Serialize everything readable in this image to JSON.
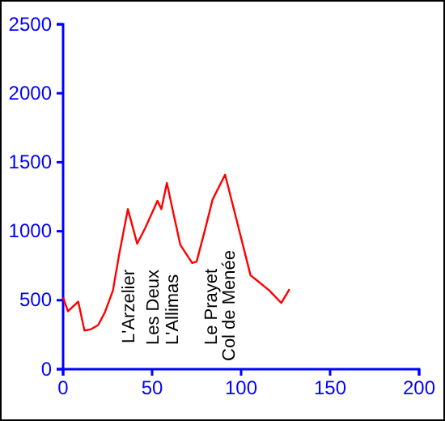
{
  "chart_data": {
    "type": "line",
    "x": [
      0,
      2.7,
      8.5,
      12,
      15.8,
      19.7,
      23.4,
      28,
      31.6,
      36.4,
      41.6,
      46,
      53,
      55.2,
      58.3,
      61.3,
      65.9,
      72.5,
      75,
      79.5,
      84,
      91,
      97.7,
      105.3,
      108.3,
      115.9,
      122.6,
      127.2
    ],
    "series": [
      {
        "color": "#ff0000",
        "values": [
          520,
          420,
          490,
          280,
          290,
          320,
          410,
          570,
          840,
          1160,
          910,
          1020,
          1220,
          1160,
          1350,
          1170,
          900,
          770,
          780,
          1000,
          1230,
          1410,
          1070,
          680,
          650,
          570,
          480,
          580
        ]
      }
    ],
    "xlim": [
      0,
      200
    ],
    "xticks": [
      0,
      50,
      100,
      150,
      200
    ],
    "ylim": [
      0,
      2500
    ],
    "yticks": [
      0,
      500,
      1000,
      1500,
      2000,
      2500
    ],
    "grid": false,
    "marker": "none",
    "line_style": "solid",
    "annotations": [
      "L'Arzelier",
      "Les Deux",
      "L'Allimas",
      "Le Prayet",
      "Col de Menée"
    ]
  }
}
